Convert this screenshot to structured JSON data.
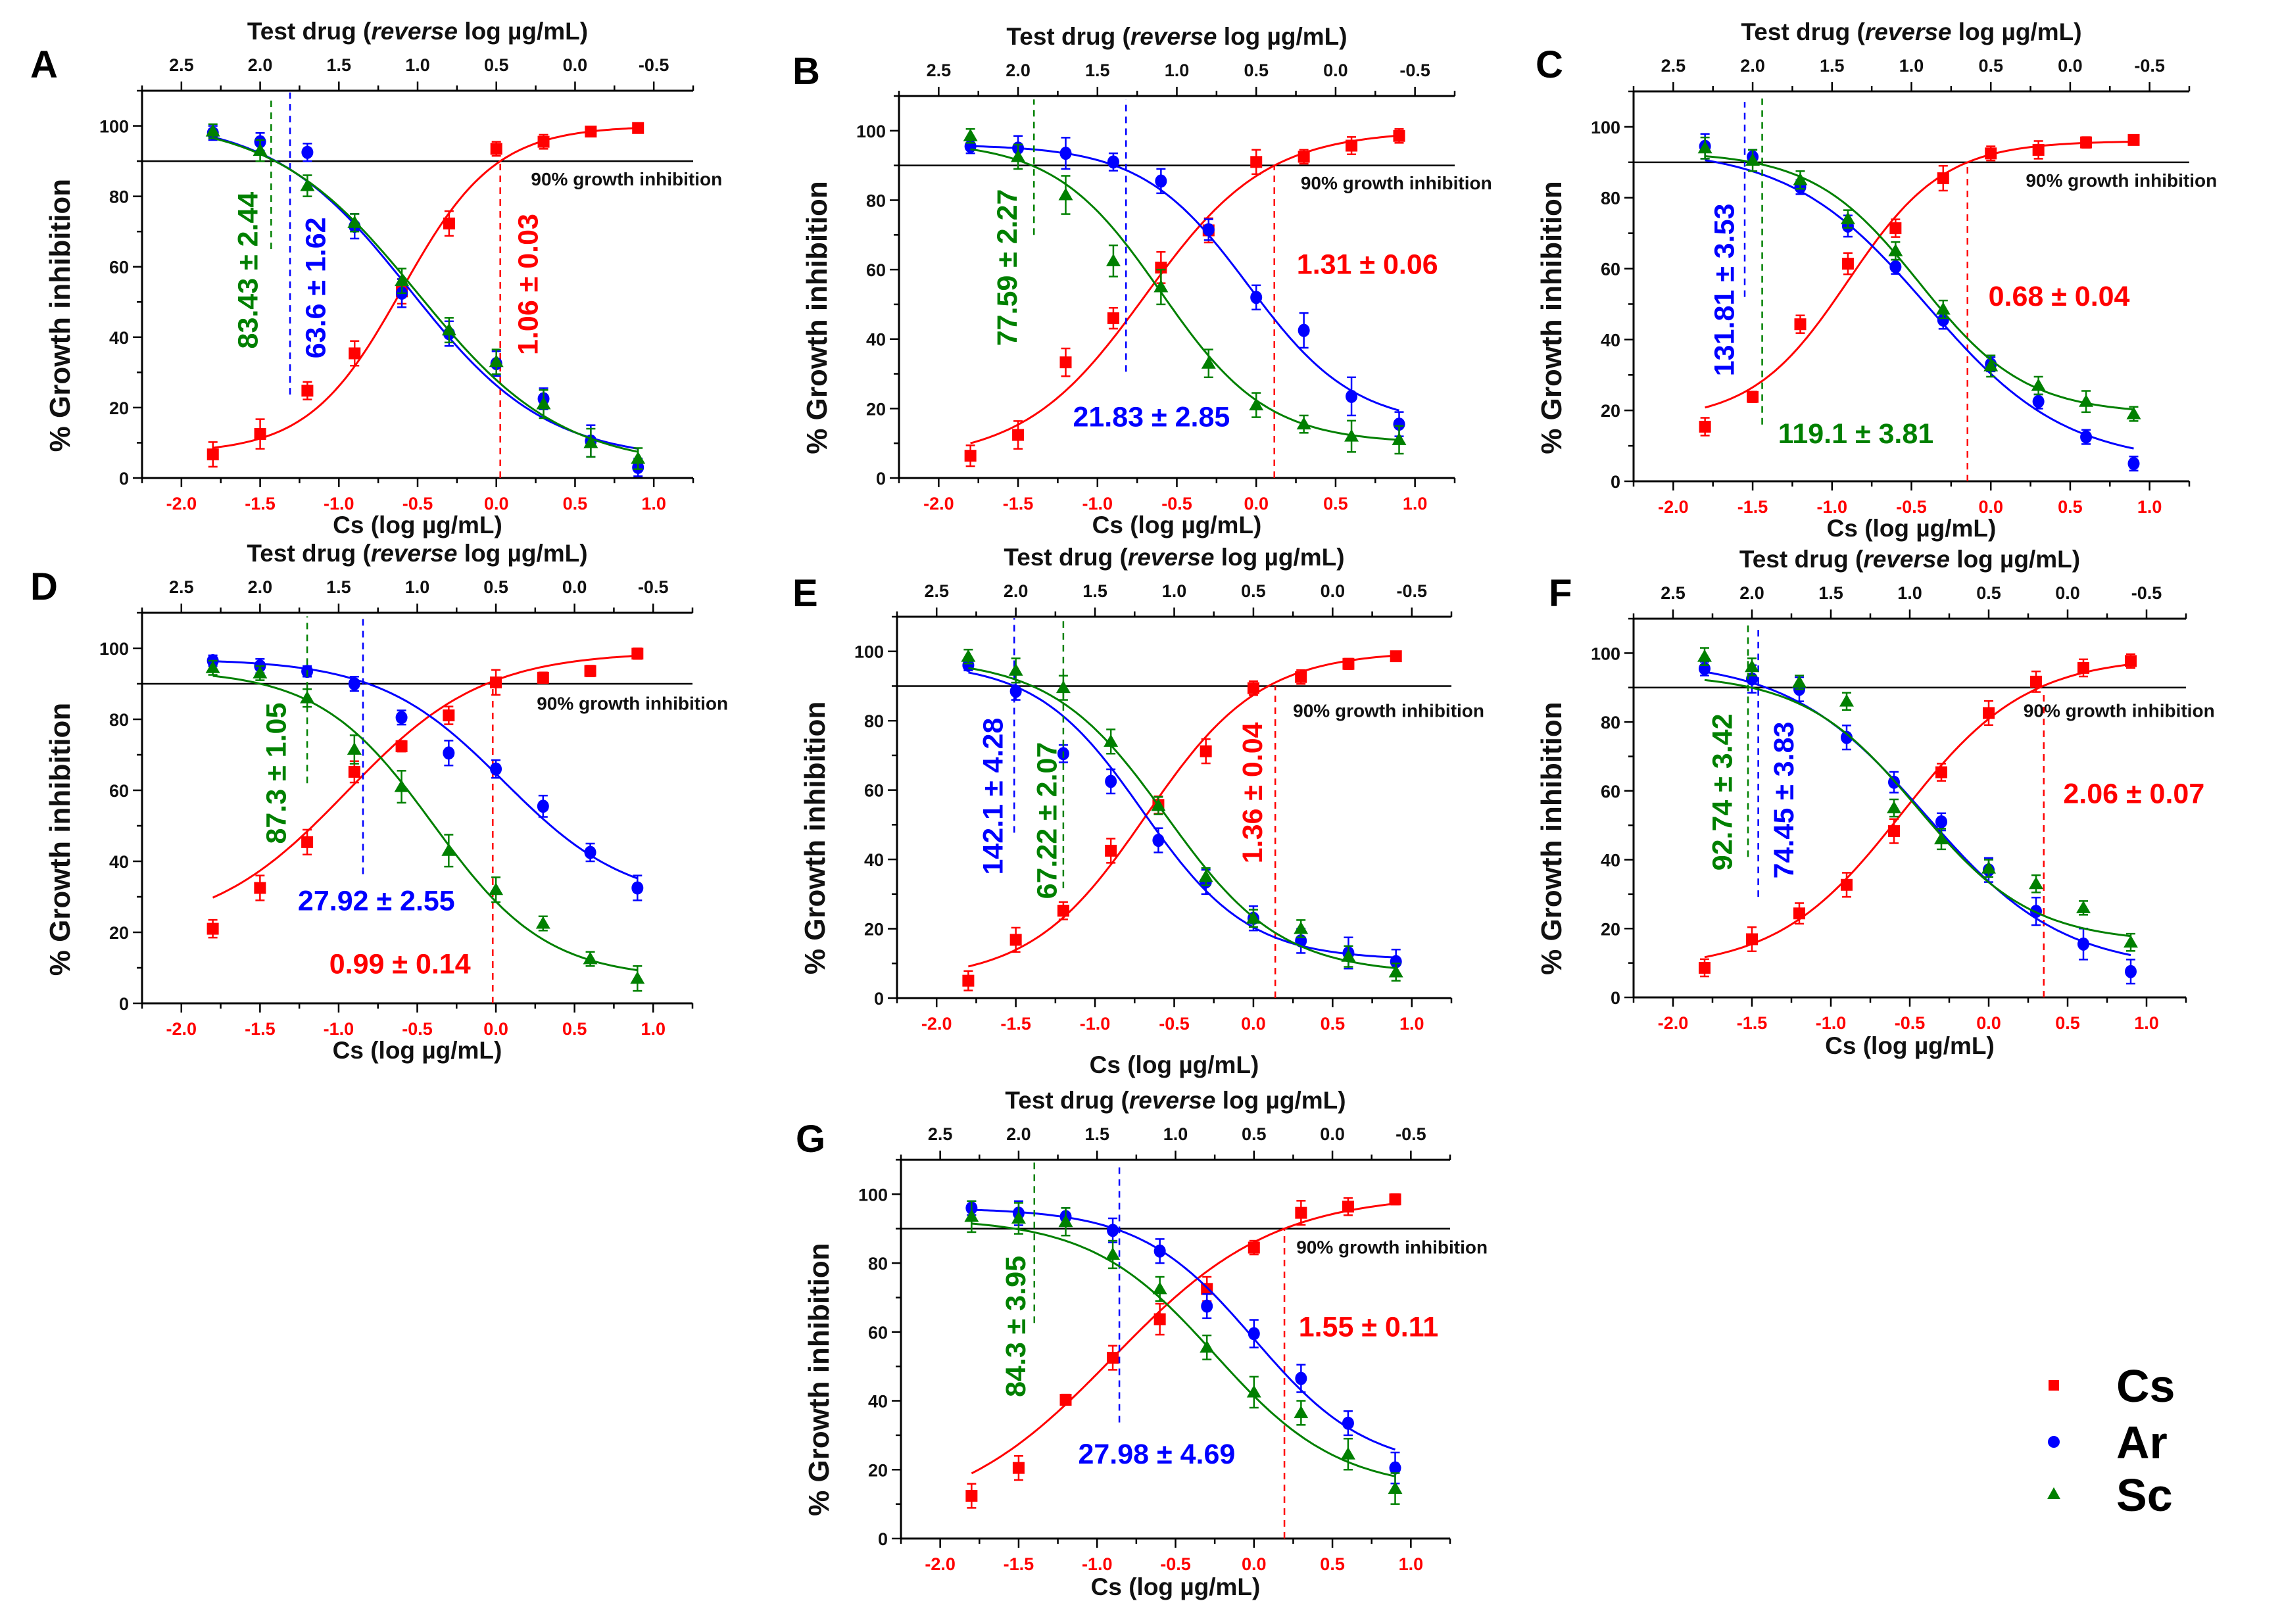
{
  "chart_data": {
    "type": "scatter",
    "shared": {
      "top_title_pre": "Test drug (",
      "top_title_italic": "reverse",
      "top_title_post": " log µg/mL)",
      "xlabel": "Cs (log µg/mL)",
      "ylabel": "% Growth inhibition",
      "threshold": 90,
      "threshold_label": "90% growth inhibition",
      "x": [
        -1.8,
        -1.5,
        -1.2,
        -0.9,
        -0.6,
        -0.3,
        0.0,
        0.3,
        0.6,
        0.9
      ],
      "xlim": [
        -2.25,
        1.25
      ],
      "ylim": [
        0,
        110
      ],
      "x_ticks": [
        "-2.0",
        "-1.5",
        "-1.0",
        "-0.5",
        "0.0",
        "0.5",
        "1.0"
      ],
      "top_ticks": [
        "2.5",
        "2.0",
        "1.5",
        "1.0",
        "0.5",
        "0.0",
        "-0.5"
      ],
      "y_ticks": [
        "0",
        "20",
        "40",
        "60",
        "80",
        "100"
      ],
      "colors": {
        "Cs": "#ff0000",
        "Ar": "#0000ff",
        "Sc": "#008000"
      }
    },
    "legend": [
      {
        "name": "Cs",
        "marker": "square",
        "color": "#ff0000"
      },
      {
        "name": "Ar",
        "marker": "circle",
        "color": "#0000ff"
      },
      {
        "name": "Sc",
        "marker": "triangle",
        "color": "#008000"
      }
    ],
    "panels": [
      {
        "letter": "A",
        "series": [
          {
            "name": "Cs",
            "y": [
              6.7,
              12.5,
              24.8,
              35.4,
              53,
              72.3,
              93.5,
              95.5,
              98.4,
              99.4
            ],
            "err": [
              3.5,
              4.2,
              2.5,
              3.5,
              3.5,
              3.5,
              2,
              2,
              1.2,
              1
            ],
            "fit": {
              "bottom": 7,
              "top": 100,
              "x50": -0.6,
              "hill": 1.47
            },
            "ec90_x": 0.025
          },
          {
            "name": "Ar",
            "y": [
              98,
              95.5,
              92.5,
              71.5,
              52.5,
              41,
              32.5,
              22.5,
              10.5,
              3
            ],
            "err": [
              2,
              2.5,
              2.5,
              3.5,
              4,
              3.5,
              3.5,
              3,
              4.5,
              2.5
            ],
            "fit": {
              "bottom": 5,
              "top": 102,
              "x50": -0.55,
              "hill": -1.0
            },
            "ec90_x": -1.31
          },
          {
            "name": "Sc",
            "y": [
              98.5,
              93,
              83,
              72.5,
              56,
              42,
              33,
              21,
              10,
              5.5
            ],
            "err": [
              2,
              3,
              3,
              2.5,
              3.5,
              3.5,
              3.5,
              4,
              4,
              3
            ],
            "fit": {
              "bottom": 3,
              "top": 102,
              "x50": -0.5,
              "hill": -0.95
            },
            "ec90_x": -1.43
          }
        ],
        "annotations": [
          {
            "series": "Sc",
            "text": "83.43 ± 2.44"
          },
          {
            "series": "Ar",
            "text": "63.6 ± 1.62"
          },
          {
            "series": "Cs",
            "text": "1.06 ± 0.03"
          }
        ]
      },
      {
        "letter": "B",
        "series": [
          {
            "name": "Cs",
            "y": [
              6.4,
              12.4,
              33.3,
              46,
              60.6,
              71.3,
              91,
              92.5,
              95.7,
              98.5
            ],
            "err": [
              3,
              4,
              4,
              3,
              4.5,
              3.5,
              3.5,
              2,
              2.5,
              2
            ],
            "fit": {
              "bottom": 5,
              "top": 100,
              "x50": -0.7,
              "hill": 1.14
            },
            "ec90_x": 0.114
          },
          {
            "name": "Ar",
            "y": [
              95.5,
              95,
              93.5,
              91,
              85.5,
              71.5,
              52,
              42.5,
              23.5,
              15.5
            ],
            "err": [
              2,
              3.5,
              4.5,
              2.5,
              3.5,
              3,
              3.5,
              5,
              5.5,
              3.5
            ],
            "fit": {
              "bottom": 15,
              "top": 96,
              "x50": -0.05,
              "hill": -1.3
            },
            "ec90_x": -0.82
          },
          {
            "name": "Sc",
            "y": [
              98.5,
              92.5,
              81.5,
              62.5,
              55,
              33,
              21,
              15.5,
              12,
              11
            ],
            "err": [
              2,
              3.5,
              5.5,
              4.5,
              5,
              4,
              3.5,
              2.5,
              4.5,
              4
            ],
            "fit": {
              "bottom": 10,
              "top": 97,
              "x50": -0.6,
              "hill": -1.3
            },
            "ec90_x": -1.4
          }
        ],
        "annotations": [
          {
            "series": "Sc",
            "text": "77.59 ± 2.27"
          },
          {
            "series": "Ar",
            "text": "21.83 ± 2.85"
          },
          {
            "series": "Cs",
            "text": "1.31 ± 0.06"
          }
        ]
      },
      {
        "letter": "C",
        "series": [
          {
            "name": "Cs",
            "y": [
              15.4,
              23.8,
              44.3,
              61.4,
              71.4,
              85.5,
              92.5,
              93.5,
              95.6,
              96.3
            ],
            "err": [
              2.5,
              1.5,
              2.5,
              3,
              2.5,
              3.5,
              2,
              2.5,
              1.5,
              1.2
            ],
            "fit": {
              "bottom": 17,
              "top": 96,
              "x50": -0.9,
              "hill": 1.44
            },
            "ec90_x": -0.147
          },
          {
            "name": "Ar",
            "y": [
              94.5,
              91.5,
              83,
              72,
              60.5,
              45.5,
              33,
              22.5,
              12.5,
              5
            ],
            "err": [
              3.5,
              2,
              2,
              3,
              2,
              2.5,
              2,
              2,
              2,
              2
            ],
            "fit": {
              "bottom": 5,
              "top": 94,
              "x50": -0.4,
              "hill": -1.0
            },
            "ec90_x": -1.55
          },
          {
            "name": "Sc",
            "y": [
              94,
              90.5,
              85,
              74,
              65,
              48.5,
              32.5,
              27,
              22.5,
              19
            ],
            "err": [
              3,
              3,
              2.5,
              2.5,
              2.5,
              2.5,
              3,
              2.5,
              3,
              2
            ],
            "fit": {
              "bottom": 19,
              "top": 93,
              "x50": -0.45,
              "hill": -1.3
            },
            "ec90_x": -1.44
          }
        ],
        "annotations": [
          {
            "series": "Ar",
            "text": "131.81 ± 3.53"
          },
          {
            "series": "Sc",
            "text": "119.1 ± 3.81"
          },
          {
            "series": "Cs",
            "text": "0.68 ± 0.04"
          }
        ]
      },
      {
        "letter": "D",
        "series": [
          {
            "name": "Cs",
            "y": [
              21,
              32.5,
              45.4,
              65.2,
              72.4,
              81.1,
              90.4,
              91.7,
              93.6,
              98.5
            ],
            "err": [
              2.5,
              3.5,
              3.5,
              3,
              1.5,
              2.5,
              3.5,
              1.5,
              1.5,
              1.5
            ],
            "fit": {
              "bottom": 20,
              "top": 99,
              "x50": -0.95,
              "hill": 1.0
            },
            "ec90_x": -0.02
          },
          {
            "name": "Ar",
            "y": [
              96.5,
              95,
              93.5,
              90,
              80.5,
              70.5,
              66,
              55.5,
              42.5,
              32.5
            ],
            "err": [
              1.5,
              2,
              1.5,
              2,
              2,
              3.5,
              2.5,
              3,
              2.5,
              3.5
            ],
            "fit": {
              "bottom": 28,
              "top": 97,
              "x50": 0.05,
              "hill": -1.1
            },
            "ec90_x": -0.845
          },
          {
            "name": "Sc",
            "y": [
              94.5,
              93,
              86,
              71.5,
              61,
              43,
              32,
              22.5,
              12.5,
              7
            ],
            "err": [
              2,
              2,
              2.5,
              4,
              4.5,
              4.5,
              3.5,
              2,
              2,
              3.5
            ],
            "fit": {
              "bottom": 7,
              "top": 94,
              "x50": -0.4,
              "hill": -1.2
            },
            "ec90_x": -1.2
          }
        ],
        "annotations": [
          {
            "series": "Sc",
            "text": "87.3 ± 1.05"
          },
          {
            "series": "Ar",
            "text": "27.92 ± 2.55"
          },
          {
            "series": "Cs",
            "text": "0.99 ± 0.14"
          }
        ]
      },
      {
        "letter": "E",
        "series": [
          {
            "name": "Cs",
            "y": [
              5,
              16.8,
              25.2,
              42.5,
              55.7,
              71.2,
              89.4,
              92.6,
              96.4,
              98.6
            ],
            "err": [
              2.8,
              3.5,
              2.5,
              3.5,
              2.5,
              3.5,
              2,
              2,
              1.5,
              1.2
            ],
            "fit": {
              "bottom": 5,
              "top": 100,
              "x50": -0.68,
              "hill": 1.2
            },
            "ec90_x": 0.138
          },
          {
            "name": "Ar",
            "y": [
              96,
              88.5,
              70.5,
              62.5,
              45.5,
              33.5,
              23,
              16.5,
              13,
              10.5
            ],
            "err": [
              1.5,
              2.5,
              2.5,
              3.5,
              3.5,
              3.5,
              3.5,
              3.5,
              4.5,
              3.5
            ],
            "fit": {
              "bottom": 11,
              "top": 97,
              "x50": -0.7,
              "hill": -1.3
            },
            "ec90_x": -1.51
          },
          {
            "name": "Sc",
            "y": [
              98.5,
              94.5,
              89.5,
              74,
              55.5,
              35,
              23,
              20,
              12,
              7.5
            ],
            "err": [
              2,
              3.5,
              3.5,
              3.5,
              2.5,
              2.5,
              2.5,
              2.5,
              3,
              2.5
            ],
            "fit": {
              "bottom": 7,
              "top": 98,
              "x50": -0.55,
              "hill": -1.2
            },
            "ec90_x": -1.2
          }
        ],
        "annotations": [
          {
            "series": "Ar",
            "text": "142.1 ± 4.28"
          },
          {
            "series": "Sc",
            "text": "67.22 ± 2.07"
          },
          {
            "series": "Cs",
            "text": "1.36 ± 0.04"
          }
        ]
      },
      {
        "letter": "F",
        "series": [
          {
            "name": "Cs",
            "y": [
              8.6,
              16.9,
              24.4,
              32.7,
              48.3,
              65.4,
              82.6,
              91.7,
              95.7,
              97.7
            ],
            "err": [
              2.5,
              3.5,
              3,
              3.5,
              3.5,
              2.5,
              3.5,
              3,
              2.5,
              2
            ],
            "fit": {
              "bottom": 8,
              "top": 99,
              "x50": -0.55,
              "hill": 1.1
            },
            "ec90_x": 0.349
          },
          {
            "name": "Ar",
            "y": [
              95.5,
              92.5,
              89.5,
              75.5,
              62.5,
              51,
              37,
              25,
              15.5,
              7.5
            ],
            "err": [
              2,
              4,
              3.5,
              3.5,
              3,
              2.5,
              3.5,
              4,
              4.5,
              3.5
            ],
            "fit": {
              "bottom": 8,
              "top": 98,
              "x50": -0.4,
              "hill": -1.0
            },
            "ec90_x": -1.46
          },
          {
            "name": "Sc",
            "y": [
              99,
              96,
              91.5,
              86,
              55,
              46,
              37.5,
              33,
              26,
              16
            ],
            "err": [
              2.5,
              2.5,
              2,
              2.5,
              2.5,
              3,
              2.5,
              2.5,
              2,
              2.5
            ],
            "fit": {
              "bottom": 16,
              "top": 94,
              "x50": -0.45,
              "hill": -1.2
            },
            "ec90_x": -1.525
          }
        ],
        "annotations": [
          {
            "series": "Sc",
            "text": "92.74 ± 3.42"
          },
          {
            "series": "Ar",
            "text": "74.45 ± 3.83"
          },
          {
            "series": "Cs",
            "text": "2.06 ± 0.07"
          }
        ]
      },
      {
        "letter": "G",
        "series": [
          {
            "name": "Cs",
            "y": [
              12.4,
              20.5,
              40.3,
              52.5,
              63.7,
              72.5,
              84.5,
              94.6,
              96.4,
              98.5
            ],
            "err": [
              3.5,
              3.5,
              1.5,
              3.5,
              4.5,
              3.5,
              2,
              3.5,
              2.5,
              1.5
            ],
            "fit": {
              "bottom": 5,
              "top": 100,
              "x50": -0.9,
              "hill": 0.85
            },
            "ec90_x": 0.194
          },
          {
            "name": "Ar",
            "y": [
              96,
              94.5,
              93.5,
              89.5,
              83.5,
              67.5,
              59.5,
              46.5,
              33.5,
              20.5
            ],
            "err": [
              2,
              3.5,
              2.5,
              3.5,
              3.5,
              3.5,
              4,
              4,
              3.5,
              4.5
            ],
            "fit": {
              "bottom": 20,
              "top": 96,
              "x50": 0.0,
              "hill": -1.2
            },
            "ec90_x": -0.858
          },
          {
            "name": "Sc",
            "y": [
              93.5,
              93,
              92,
              82.5,
              72.5,
              55.5,
              42.5,
              36.5,
              24.5,
              14.5
            ],
            "err": [
              4.5,
              4.5,
              4,
              4,
              3.5,
              3.5,
              4.5,
              3.5,
              4.5,
              4.5
            ],
            "fit": {
              "bottom": 14,
              "top": 93,
              "x50": -0.25,
              "hill": -1.1
            },
            "ec90_x": -1.4
          }
        ],
        "annotations": [
          {
            "series": "Sc",
            "text": "84.3 ± 3.95"
          },
          {
            "series": "Ar",
            "text": "27.98 ± 4.69"
          },
          {
            "series": "Cs",
            "text": "1.55 ± 0.11"
          }
        ]
      }
    ]
  }
}
